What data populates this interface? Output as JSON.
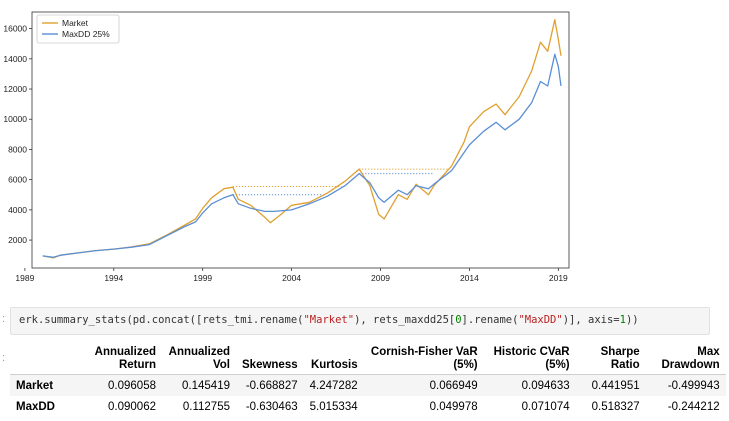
{
  "chart_data": {
    "type": "line",
    "legend": {
      "placement": "upper-left"
    },
    "x_ticks": [
      "1989",
      "1994",
      "1999",
      "2004",
      "2009",
      "2014",
      "2019"
    ],
    "x_range": [
      1989.4,
      2019.6
    ],
    "y_ticks": [
      "2000",
      "4000",
      "6000",
      "8000",
      "10000",
      "12000",
      "14000",
      "16000"
    ],
    "y_range": [
      150,
      17100
    ],
    "series": [
      {
        "name": "Market",
        "color": "#e0a030",
        "points": [
          [
            1990,
            950
          ],
          [
            1990.6,
            820
          ],
          [
            1991,
            1000
          ],
          [
            1992,
            1150
          ],
          [
            1993,
            1300
          ],
          [
            1994,
            1400
          ],
          [
            1995,
            1550
          ],
          [
            1996,
            1750
          ],
          [
            1997,
            2350
          ],
          [
            1998,
            3000
          ],
          [
            1998.6,
            3400
          ],
          [
            1999,
            4100
          ],
          [
            1999.5,
            4800
          ],
          [
            2000.2,
            5400
          ],
          [
            2000.7,
            5500
          ],
          [
            2001,
            4700
          ],
          [
            2001.7,
            4300
          ],
          [
            2002.5,
            3500
          ],
          [
            2002.8,
            3150
          ],
          [
            2003.3,
            3600
          ],
          [
            2004,
            4300
          ],
          [
            2005,
            4500
          ],
          [
            2006,
            5100
          ],
          [
            2007,
            5900
          ],
          [
            2007.8,
            6700
          ],
          [
            2008.4,
            5600
          ],
          [
            2008.9,
            3700
          ],
          [
            2009.2,
            3400
          ],
          [
            2009.6,
            4200
          ],
          [
            2010,
            5000
          ],
          [
            2010.5,
            4700
          ],
          [
            2011,
            5700
          ],
          [
            2011.7,
            5000
          ],
          [
            2012,
            5600
          ],
          [
            2013,
            6900
          ],
          [
            2013.7,
            8500
          ],
          [
            2014,
            9500
          ],
          [
            2014.8,
            10500
          ],
          [
            2015.5,
            11000
          ],
          [
            2016,
            10300
          ],
          [
            2016.8,
            11500
          ],
          [
            2017.5,
            13200
          ],
          [
            2018,
            15100
          ],
          [
            2018.4,
            14500
          ],
          [
            2018.8,
            16600
          ],
          [
            2019,
            15300
          ],
          [
            2019.15,
            14200
          ]
        ]
      },
      {
        "name": "MaxDD 25%",
        "color": "#5b8fd4",
        "points": [
          [
            1990,
            950
          ],
          [
            1990.6,
            860
          ],
          [
            1991,
            1000
          ],
          [
            1992,
            1150
          ],
          [
            1993,
            1300
          ],
          [
            1994,
            1400
          ],
          [
            1995,
            1530
          ],
          [
            1996,
            1700
          ],
          [
            1997,
            2300
          ],
          [
            1998,
            2900
          ],
          [
            1998.6,
            3200
          ],
          [
            1999,
            3800
          ],
          [
            1999.5,
            4400
          ],
          [
            2000.2,
            4800
          ],
          [
            2000.7,
            5000
          ],
          [
            2001,
            4400
          ],
          [
            2001.7,
            4100
          ],
          [
            2002.5,
            3900
          ],
          [
            2003,
            3900
          ],
          [
            2004,
            4000
          ],
          [
            2005,
            4400
          ],
          [
            2006,
            4900
          ],
          [
            2007,
            5600
          ],
          [
            2007.8,
            6400
          ],
          [
            2008.4,
            5800
          ],
          [
            2008.9,
            4800
          ],
          [
            2009.2,
            4500
          ],
          [
            2009.6,
            4900
          ],
          [
            2010,
            5300
          ],
          [
            2010.5,
            5000
          ],
          [
            2011,
            5600
          ],
          [
            2011.7,
            5400
          ],
          [
            2012,
            5700
          ],
          [
            2013,
            6600
          ],
          [
            2013.7,
            7800
          ],
          [
            2014,
            8300
          ],
          [
            2014.8,
            9200
          ],
          [
            2015.5,
            9800
          ],
          [
            2016,
            9300
          ],
          [
            2016.8,
            10000
          ],
          [
            2017.5,
            11100
          ],
          [
            2018,
            12500
          ],
          [
            2018.4,
            12200
          ],
          [
            2018.8,
            14300
          ],
          [
            2019,
            13500
          ],
          [
            2019.15,
            12200
          ]
        ]
      }
    ],
    "peak_lines": [
      {
        "series": "Market",
        "from": 2000.7,
        "to": 2006.8,
        "y": 5550
      },
      {
        "series": "Market",
        "from": 2007.8,
        "to": 2012.8,
        "y": 6700
      },
      {
        "series": "MaxDD 25%",
        "from": 2000.7,
        "to": 2005.8,
        "y": 5000
      },
      {
        "series": "MaxDD 25%",
        "from": 2007.8,
        "to": 2012.0,
        "y": 6400
      }
    ]
  },
  "code_cell": {
    "prompt": ":",
    "code_prefix": "erk.summary_stats(pd.concat([rets_tmi.rename(",
    "str1": "\"Market\"",
    "code_mid1": "), rets_maxdd25[",
    "num": "0",
    "code_mid2": "].rename(",
    "str2": "\"MaxDD\"",
    "code_mid3": ")], axis=",
    "num2": "1",
    "code_suffix": "))"
  },
  "output_prompt": ":",
  "stats_table": {
    "headers": [
      "Annualized Return",
      "Annualized Vol",
      "Skewness",
      "Kurtosis",
      "Cornish-Fisher VaR (5%)",
      "Historic CVaR (5%)",
      "Sharpe Ratio",
      "Max Drawdown"
    ],
    "rows": [
      {
        "name": "Market",
        "values": [
          "0.096058",
          "0.145419",
          "-0.668827",
          "4.247282",
          "0.066949",
          "0.094633",
          "0.441951",
          "-0.499943"
        ]
      },
      {
        "name": "MaxDD",
        "values": [
          "0.090062",
          "0.112755",
          "-0.630463",
          "5.015334",
          "0.049978",
          "0.071074",
          "0.518327",
          "-0.244212"
        ]
      }
    ]
  }
}
